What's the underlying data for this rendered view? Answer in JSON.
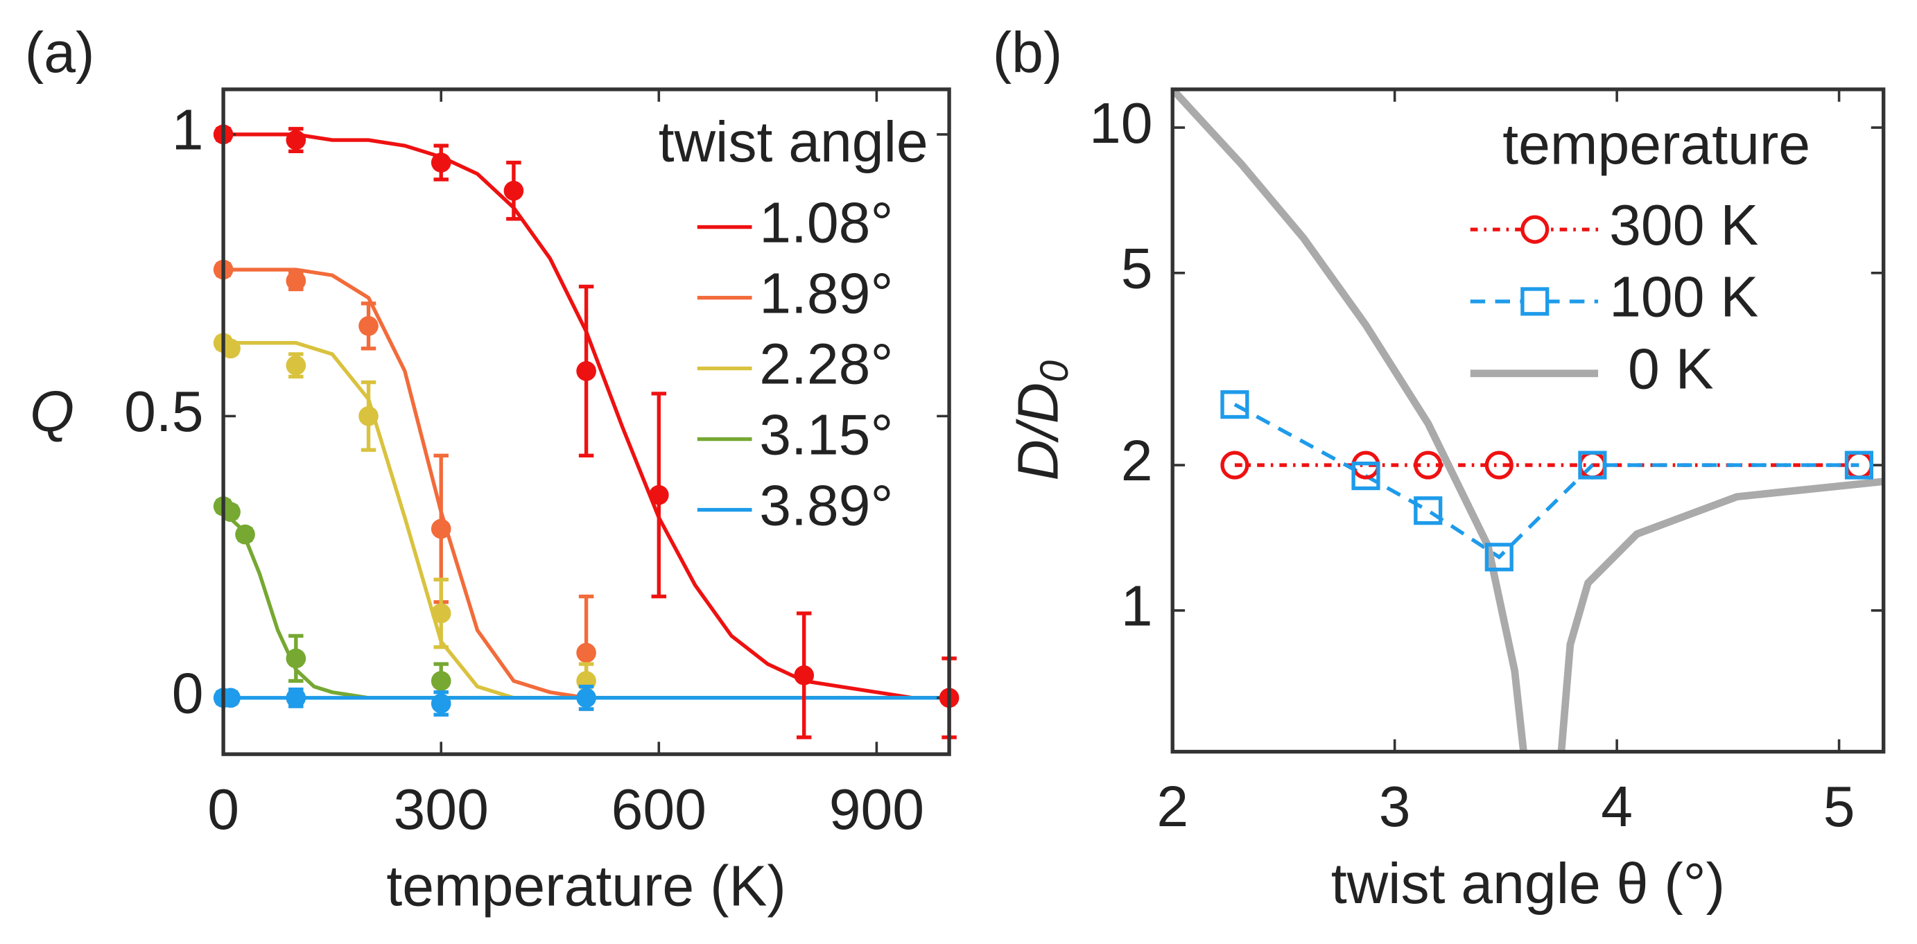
{
  "panels": [
    "(a)",
    "(b)"
  ],
  "chart_data": [
    {
      "type": "line",
      "xlabel": "temperature (K)",
      "ylabel": "Q",
      "xlim": [
        0,
        1000
      ],
      "ylim": [
        -0.1,
        1.08
      ],
      "xticks": [
        0,
        300,
        600,
        900
      ],
      "yticks": [
        0,
        0.5,
        1
      ],
      "legend_title": "twist angle",
      "legend": "upper right",
      "series": [
        {
          "name": "1.08°",
          "color": "#ee1111",
          "x": [
            0,
            100,
            300,
            400,
            500,
            600,
            800,
            1000
          ],
          "values": [
            1.0,
            0.99,
            0.95,
            0.9,
            0.58,
            0.36,
            0.04,
            0.0
          ],
          "errors": [
            0.01,
            0.02,
            0.03,
            0.05,
            0.15,
            0.18,
            0.11,
            0.07
          ],
          "fit_x": [
            0,
            50,
            100,
            150,
            200,
            250,
            300,
            350,
            400,
            450,
            500,
            550,
            600,
            650,
            700,
            750,
            800,
            850,
            900,
            950,
            1000
          ],
          "fit_values": [
            1.0,
            1.0,
            1.0,
            0.99,
            0.99,
            0.98,
            0.96,
            0.93,
            0.87,
            0.78,
            0.65,
            0.48,
            0.32,
            0.2,
            0.11,
            0.06,
            0.03,
            0.02,
            0.01,
            0.0,
            0.0
          ]
        },
        {
          "name": "1.89°",
          "color": "#f26b3a",
          "x": [
            0,
            100,
            200,
            300,
            500
          ],
          "values": [
            0.76,
            0.74,
            0.66,
            0.3,
            0.08
          ],
          "errors": [
            0.01,
            0.015,
            0.04,
            0.13,
            0.1
          ],
          "fit_x": [
            0,
            50,
            100,
            150,
            200,
            250,
            300,
            350,
            400,
            450,
            500,
            1000
          ],
          "fit_values": [
            0.76,
            0.76,
            0.76,
            0.75,
            0.71,
            0.58,
            0.33,
            0.12,
            0.03,
            0.01,
            0.0,
            0.0
          ]
        },
        {
          "name": "2.28°",
          "color": "#d9c23e",
          "x": [
            0,
            10,
            100,
            200,
            300,
            500
          ],
          "values": [
            0.63,
            0.62,
            0.59,
            0.5,
            0.15,
            0.03
          ],
          "errors": [
            0.01,
            0.01,
            0.02,
            0.06,
            0.06,
            0.03
          ],
          "fit_x": [
            0,
            50,
            100,
            150,
            200,
            250,
            300,
            350,
            400,
            1000
          ],
          "fit_values": [
            0.63,
            0.63,
            0.63,
            0.61,
            0.53,
            0.32,
            0.1,
            0.02,
            0.0,
            0.0
          ]
        },
        {
          "name": "3.15°",
          "color": "#76a832",
          "x": [
            0,
            10,
            30,
            100,
            300
          ],
          "values": [
            0.34,
            0.33,
            0.29,
            0.07,
            0.03
          ],
          "errors": [
            0.01,
            0.01,
            0.01,
            0.04,
            0.03
          ],
          "fit_x": [
            0,
            25,
            50,
            75,
            100,
            125,
            150,
            200,
            1000
          ],
          "fit_values": [
            0.33,
            0.3,
            0.22,
            0.12,
            0.05,
            0.02,
            0.01,
            0.0,
            0.0
          ]
        },
        {
          "name": "3.89°",
          "color": "#1e9bea",
          "x": [
            0,
            10,
            100,
            300,
            500
          ],
          "values": [
            0.0,
            0.0,
            0.0,
            -0.01,
            0.0
          ],
          "errors": [
            0.01,
            0.01,
            0.015,
            0.02,
            0.02
          ],
          "fit_x": [
            0,
            1000
          ],
          "fit_values": [
            0.0,
            0.0
          ]
        }
      ]
    },
    {
      "type": "line",
      "xlabel": "twist angle θ (°)",
      "ylabel": [
        "D/D",
        "0"
      ],
      "xlim": [
        2,
        5.2
      ],
      "ylim": [
        0.51,
        12
      ],
      "log_y": true,
      "xticks": [
        2,
        3,
        4,
        5
      ],
      "yticks": [
        1,
        2,
        5,
        10
      ],
      "legend_title": "temperature",
      "legend": "upper right",
      "series": [
        {
          "name": "300 K",
          "color": "#ee1111",
          "linestyle": "dashdot",
          "marker": "circle",
          "x": [
            2.28,
            2.87,
            3.15,
            3.47,
            3.89,
            5.09
          ],
          "values": [
            2.0,
            2.0,
            2.0,
            2.0,
            2.0,
            2.0
          ]
        },
        {
          "name": "100 K",
          "color": "#1e9bea",
          "linestyle": "dashed",
          "marker": "square",
          "x": [
            2.28,
            2.87,
            3.15,
            3.47,
            3.89,
            5.09
          ],
          "values": [
            2.67,
            1.9,
            1.61,
            1.29,
            2.0,
            2.0
          ]
        },
        {
          "name": "0 K",
          "color": "#aaaaaa",
          "linestyle": "solid",
          "marker": null,
          "x": [
            2.0,
            2.31,
            2.59,
            2.87,
            3.15,
            3.42,
            3.54,
            3.58,
            null,
            3.75,
            3.79,
            3.87,
            4.09,
            4.54,
            5.2
          ],
          "values": [
            12,
            8.4,
            5.9,
            3.9,
            2.44,
            1.36,
            0.75,
            0.51,
            null,
            0.51,
            0.85,
            1.14,
            1.44,
            1.72,
            1.85
          ]
        }
      ]
    }
  ]
}
